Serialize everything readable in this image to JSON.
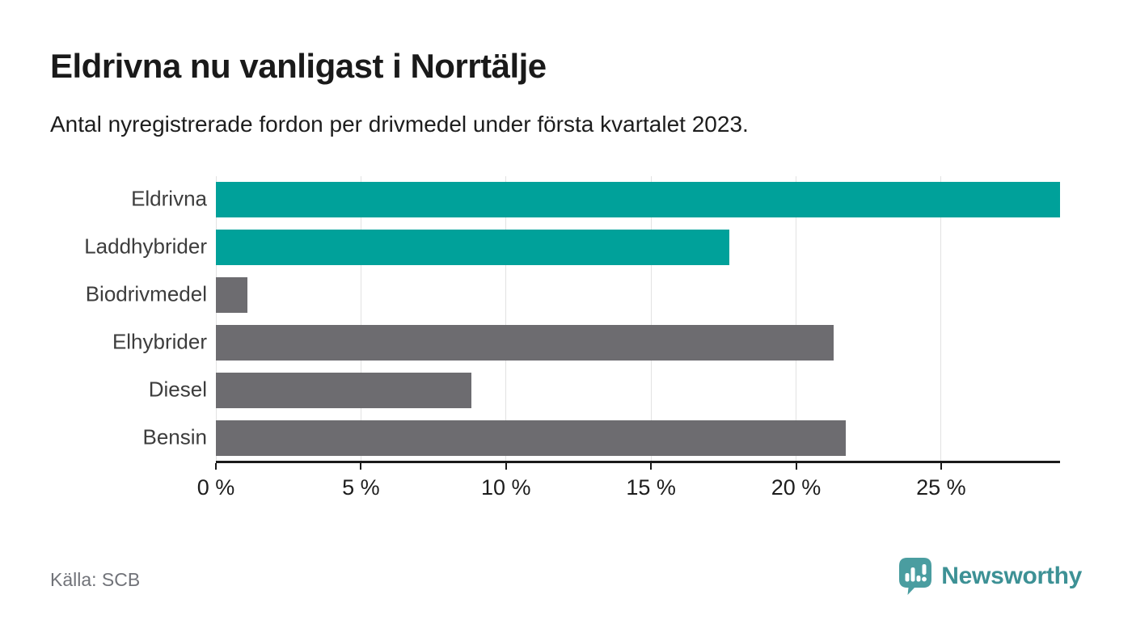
{
  "header": {
    "title": "Eldrivna nu vanligast i Norrtälje",
    "subtitle": "Antal nyregistrerade fordon per drivmedel under första kvartalet 2023."
  },
  "chart_data": {
    "type": "bar",
    "orientation": "horizontal",
    "title": "Eldrivna nu vanligast i Norrtälje",
    "subtitle": "Antal nyregistrerade fordon per drivmedel under första kvartalet 2023.",
    "categories": [
      "Eldrivna",
      "Laddhybrider",
      "Biodrivmedel",
      "Elhybrider",
      "Diesel",
      "Bensin"
    ],
    "values": [
      29.1,
      17.7,
      1.1,
      21.3,
      8.8,
      21.7
    ],
    "unit": "%",
    "xlim": [
      0,
      29.1
    ],
    "x_ticks": [
      0,
      5,
      10,
      15,
      20,
      25
    ],
    "x_tick_suffix": " %",
    "grid": "vertical-only",
    "legend": "none",
    "colors": {
      "highlight_bar": "#00a19a",
      "default_bar": "#6d6c70",
      "gridline": "#e2e2e2",
      "axis": "#1a1a1a",
      "category_label": "#3d3d3d",
      "tick_label": "#1d1d1d"
    },
    "series_color_keys": [
      "highlight_bar",
      "highlight_bar",
      "default_bar",
      "default_bar",
      "default_bar",
      "default_bar"
    ]
  },
  "footer": {
    "source_label": "Källa: SCB",
    "brand": {
      "name": "Newsworthy",
      "badge_icon": "newsworthy-badge-icon",
      "badge_color": "#4a9da0",
      "text_color": "#3d9195"
    }
  }
}
